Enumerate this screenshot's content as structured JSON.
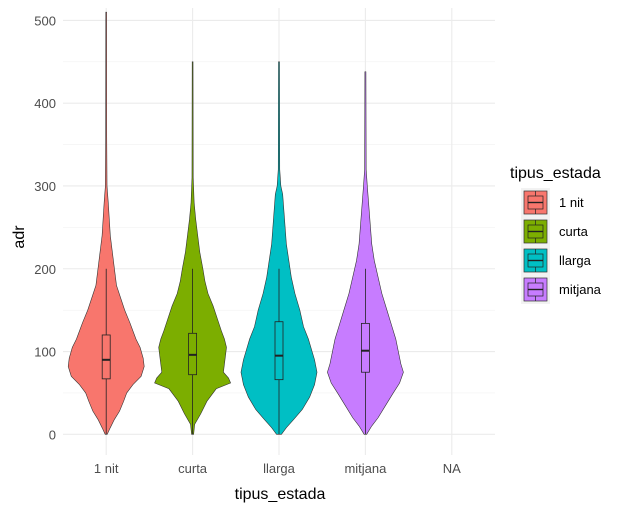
{
  "chart_data": {
    "type": "violin",
    "xlabel": "tipus_estada",
    "ylabel": "adr",
    "categories": [
      "1 nit",
      "curta",
      "llarga",
      "mitjana",
      "NA"
    ],
    "ylim": [
      -25,
      515
    ],
    "yticks": [
      0,
      100,
      200,
      300,
      400,
      500
    ],
    "grid": true,
    "legend": {
      "title": "tipus_estada",
      "position": "right",
      "entries": [
        "1 nit",
        "curta",
        "llarga",
        "mitjana"
      ]
    },
    "series": [
      {
        "name": "1 nit",
        "color": "#F8766D",
        "min": 0,
        "max": 510,
        "box": {
          "q1": 67,
          "median": 90,
          "q3": 120,
          "whisker_low": 0,
          "whisker_high": 200
        },
        "profile": [
          [
            0,
            1
          ],
          [
            8,
            4
          ],
          [
            18,
            8
          ],
          [
            28,
            13
          ],
          [
            40,
            17
          ],
          [
            50,
            20
          ],
          [
            60,
            26
          ],
          [
            70,
            34
          ],
          [
            82,
            37
          ],
          [
            92,
            36
          ],
          [
            105,
            33
          ],
          [
            115,
            29
          ],
          [
            125,
            26
          ],
          [
            135,
            23
          ],
          [
            150,
            18
          ],
          [
            165,
            14
          ],
          [
            180,
            10
          ],
          [
            200,
            8
          ],
          [
            220,
            6
          ],
          [
            240,
            4
          ],
          [
            260,
            3
          ],
          [
            280,
            2
          ],
          [
            300,
            0.8
          ],
          [
            360,
            0.5
          ],
          [
            510,
            0.4
          ]
        ]
      },
      {
        "name": "curta",
        "color": "#7CAE00",
        "min": 0,
        "max": 450,
        "box": {
          "q1": 72,
          "median": 96,
          "q3": 122,
          "whisker_low": 0,
          "whisker_high": 200
        },
        "profile": [
          [
            0,
            1
          ],
          [
            12,
            2
          ],
          [
            25,
            8
          ],
          [
            40,
            14
          ],
          [
            55,
            23
          ],
          [
            62,
            37
          ],
          [
            68,
            35
          ],
          [
            75,
            30
          ],
          [
            85,
            31
          ],
          [
            95,
            32
          ],
          [
            105,
            33
          ],
          [
            115,
            31
          ],
          [
            125,
            28
          ],
          [
            140,
            24
          ],
          [
            155,
            20
          ],
          [
            170,
            15
          ],
          [
            185,
            12
          ],
          [
            200,
            10
          ],
          [
            220,
            7
          ],
          [
            240,
            5
          ],
          [
            260,
            3
          ],
          [
            280,
            1.5
          ],
          [
            310,
            0.6
          ],
          [
            450,
            0.4
          ]
        ]
      },
      {
        "name": "llarga",
        "color": "#00BFC4",
        "min": 0,
        "max": 450,
        "box": {
          "q1": 66,
          "median": 95,
          "q3": 136,
          "whisker_low": 0,
          "whisker_high": 200
        },
        "profile": [
          [
            0,
            2
          ],
          [
            8,
            6
          ],
          [
            18,
            12
          ],
          [
            30,
            19
          ],
          [
            45,
            25
          ],
          [
            60,
            29
          ],
          [
            75,
            31
          ],
          [
            90,
            29
          ],
          [
            100,
            27
          ],
          [
            115,
            24
          ],
          [
            130,
            20
          ],
          [
            150,
            17
          ],
          [
            170,
            13
          ],
          [
            190,
            10
          ],
          [
            210,
            8
          ],
          [
            230,
            6
          ],
          [
            250,
            5
          ],
          [
            270,
            4
          ],
          [
            290,
            3
          ],
          [
            300,
            1.5
          ],
          [
            320,
            0.6
          ],
          [
            450,
            0.4
          ]
        ]
      },
      {
        "name": "mitjana",
        "color": "#C77CFF",
        "min": 0,
        "max": 438,
        "box": {
          "q1": 75,
          "median": 101,
          "q3": 134,
          "whisker_low": 0,
          "whisker_high": 200
        },
        "profile": [
          [
            0,
            1
          ],
          [
            10,
            5
          ],
          [
            20,
            10
          ],
          [
            35,
            16
          ],
          [
            50,
            22
          ],
          [
            62,
            27
          ],
          [
            75,
            30
          ],
          [
            85,
            28
          ],
          [
            100,
            26
          ],
          [
            115,
            24
          ],
          [
            130,
            21
          ],
          [
            150,
            17
          ],
          [
            170,
            13
          ],
          [
            190,
            10
          ],
          [
            210,
            7
          ],
          [
            230,
            5
          ],
          [
            250,
            4
          ],
          [
            270,
            3
          ],
          [
            290,
            2
          ],
          [
            300,
            1.5
          ],
          [
            320,
            0.6
          ],
          [
            438,
            0.4
          ]
        ]
      }
    ]
  }
}
